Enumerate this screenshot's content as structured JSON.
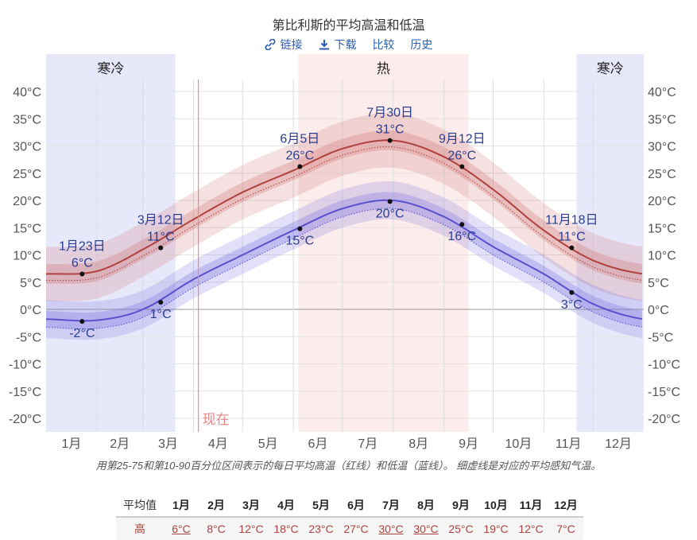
{
  "page": {
    "title": "第比利斯的平均高温和低温",
    "links": [
      "链接",
      "下载",
      "比较",
      "历史"
    ],
    "caption": "用第25-75和第10-90百分位区间表示的每日平均高温（红线）和低温（蓝线）。 细虚线是对应的平均感知气温。"
  },
  "colors": {
    "high_line": "#b0413e",
    "low_line": "#5a4fcf",
    "cold_band": "#e8e8fb",
    "hot_band": "#fcecec",
    "now_line": "#e88a8a",
    "label": "#2a3d8f"
  },
  "chart_data": {
    "type": "line",
    "title": "第比利斯的平均高温和低温",
    "xlabel": "",
    "ylabel": "",
    "ylim": [
      -22,
      42
    ],
    "yticks": [
      -20,
      -15,
      -10,
      -5,
      0,
      5,
      10,
      15,
      20,
      25,
      30,
      35,
      40
    ],
    "ytick_labels": [
      "-20°C",
      "-15°C",
      "-10°C",
      "-5°C",
      "0°C",
      "5°C",
      "10°C",
      "15°C",
      "20°C",
      "25°C",
      "30°C",
      "35°C",
      "40°C"
    ],
    "months": [
      "1月",
      "2月",
      "3月",
      "4月",
      "5月",
      "6月",
      "7月",
      "8月",
      "9月",
      "10月",
      "11月",
      "12月"
    ],
    "seasons": [
      {
        "label": "寒冷",
        "start": 0,
        "end": 79,
        "kind": "cold"
      },
      {
        "label": "热",
        "start": 154,
        "end": 258,
        "kind": "hot"
      },
      {
        "label": "寒冷",
        "start": 324,
        "end": 365,
        "kind": "cold"
      }
    ],
    "now": {
      "label": "现在",
      "day": 93
    },
    "series": [
      {
        "name": "平均高温",
        "days": [
          0,
          31,
          59,
          90,
          120,
          151,
          181,
          212,
          243,
          273,
          304,
          334,
          365
        ],
        "values": [
          6.5,
          7,
          11,
          16.5,
          21.5,
          25.5,
          29.5,
          31,
          28,
          22,
          14.5,
          9,
          6.5
        ],
        "p25_75": 1.8,
        "p10_90": 5,
        "feels_like_offset": -1.2
      },
      {
        "name": "平均低温",
        "days": [
          0,
          31,
          59,
          90,
          120,
          151,
          181,
          212,
          243,
          273,
          304,
          334,
          365
        ],
        "values": [
          -1.8,
          -2,
          0,
          5.5,
          10,
          14.5,
          18.5,
          20,
          17,
          11.5,
          6.5,
          1,
          -1.8
        ],
        "p25_75": 1.5,
        "p10_90": 3.5,
        "feels_like_offset": -1.5
      }
    ],
    "annotations": [
      {
        "date": "1月23日",
        "value": "6°C",
        "day": 22,
        "y": 6.5,
        "series": "high",
        "pos": "above2"
      },
      {
        "date": "",
        "value": "-2°C",
        "day": 22,
        "y": -2.2,
        "series": "low",
        "pos": "below"
      },
      {
        "date": "3月12日",
        "value": "11°C",
        "day": 70,
        "y": 11.3,
        "series": "high",
        "pos": "above2"
      },
      {
        "date": "",
        "value": "1°C",
        "day": 70,
        "y": 1.3,
        "series": "low",
        "pos": "below"
      },
      {
        "date": "6月5日",
        "value": "26°C",
        "day": 155,
        "y": 26.2,
        "series": "high",
        "pos": "above2"
      },
      {
        "date": "",
        "value": "15°C",
        "day": 155,
        "y": 14.8,
        "series": "low",
        "pos": "below"
      },
      {
        "date": "7月30日",
        "value": "31°C",
        "day": 210,
        "y": 31,
        "series": "high",
        "pos": "above2"
      },
      {
        "date": "",
        "value": "20°C",
        "day": 210,
        "y": 19.8,
        "series": "low",
        "pos": "below"
      },
      {
        "date": "9月12日",
        "value": "26°C",
        "day": 254,
        "y": 26.2,
        "series": "high",
        "pos": "above2"
      },
      {
        "date": "",
        "value": "16°C",
        "day": 254,
        "y": 15.6,
        "series": "low",
        "pos": "below"
      },
      {
        "date": "11月18日",
        "value": "11°C",
        "day": 321,
        "y": 11.3,
        "series": "high",
        "pos": "above2"
      },
      {
        "date": "",
        "value": "3°C",
        "day": 321,
        "y": 3.1,
        "series": "low",
        "pos": "below"
      }
    ]
  },
  "table": {
    "header_label": "平均值",
    "months": [
      "1月",
      "2月",
      "3月",
      "4月",
      "5月",
      "6月",
      "7月",
      "8月",
      "9月",
      "10月",
      "11月",
      "12月"
    ],
    "high_label": "高",
    "high": [
      "6°C",
      "8°C",
      "12°C",
      "18°C",
      "23°C",
      "27°C",
      "30°C",
      "30°C",
      "25°C",
      "19°C",
      "12°C",
      "7°C"
    ]
  }
}
